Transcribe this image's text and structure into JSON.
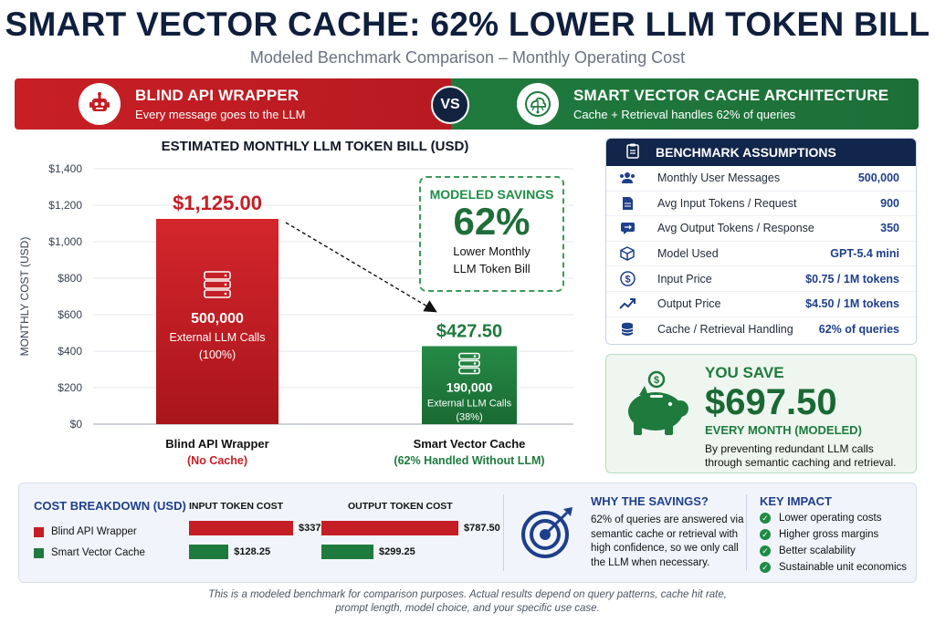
{
  "header": {
    "title": "SMART VECTOR CACHE: 62% LOWER LLM TOKEN BILL",
    "subtitle": "Modeled Benchmark Comparison – Monthly Operating Cost"
  },
  "banner": {
    "left_title": "BLIND API WRAPPER",
    "left_sub": "Every message goes to the LLM",
    "vs": "VS",
    "right_title": "SMART VECTOR CACHE ARCHITECTURE",
    "right_sub": "Cache + Retrieval handles 62% of queries"
  },
  "chart_data": {
    "type": "bar",
    "title": "ESTIMATED MONTHLY LLM TOKEN BILL (USD)",
    "ylabel": "MONTHLY COST (USD)",
    "xlabel": "",
    "ylim": [
      0,
      1400
    ],
    "yticks": [
      "$0",
      "$200",
      "$400",
      "$600",
      "$800",
      "$1,000",
      "$1,200",
      "$1,400"
    ],
    "grid": true,
    "categories": [
      "Blind API Wrapper",
      "Smart Vector Cache"
    ],
    "category_subs": [
      "(No Cache)",
      "(62% Handled Without LLM)"
    ],
    "values": [
      1125.0,
      427.5
    ],
    "value_labels": [
      "$1,125.00",
      "$427.50"
    ],
    "bar_calls": [
      "500,000",
      "190,000"
    ],
    "bar_calls_label": [
      "External LLM Calls",
      "External LLM Calls"
    ],
    "bar_calls_pct": [
      "(100%)",
      "(38%)"
    ],
    "colors": [
      "#c41e24",
      "#1f7a3d"
    ]
  },
  "savings": {
    "label": "MODELED SAVINGS",
    "pct": "62%",
    "desc1": "Lower Monthly",
    "desc2": "LLM Token Bill"
  },
  "assumptions": {
    "title": "BENCHMARK ASSUMPTIONS",
    "rows": [
      {
        "label": "Monthly User Messages",
        "value": "500,000",
        "icon": "users-icon"
      },
      {
        "label": "Avg Input Tokens / Request",
        "value": "900",
        "icon": "document-icon"
      },
      {
        "label": "Avg Output Tokens / Response",
        "value": "350",
        "icon": "chat-icon"
      },
      {
        "label": "Model Used",
        "value": "GPT-5.4 mini",
        "icon": "cube-icon"
      },
      {
        "label": "Input Price",
        "value": "$0.75 / 1M tokens",
        "icon": "dollar-icon"
      },
      {
        "label": "Output Price",
        "value": "$4.50 / 1M tokens",
        "icon": "trend-icon"
      },
      {
        "label": "Cache / Retrieval Handling",
        "value": "62% of queries",
        "icon": "database-icon"
      }
    ]
  },
  "yousave": {
    "label": "YOU SAVE",
    "amount": "$697.50",
    "period": "EVERY MONTH (MODELED)",
    "desc1": "By preventing redundant LLM calls",
    "desc2": "through semantic caching and retrieval."
  },
  "breakdown": {
    "title": "COST BREAKDOWN (USD)",
    "legend": [
      "Blind API Wrapper",
      "Smart Vector Cache"
    ],
    "input_head": "INPUT TOKEN COST",
    "output_head": "OUTPUT TOKEN COST",
    "input_values": [
      337.5,
      128.25
    ],
    "input_labels": [
      "$337.50",
      "$128.25"
    ],
    "output_values": [
      787.5,
      299.25
    ],
    "output_labels": [
      "$787.50",
      "$299.25"
    ]
  },
  "why": {
    "title": "WHY THE SAVINGS?",
    "text": "62% of queries are answered via semantic cache or retrieval with high confidence, so we only call the LLM when necessary."
  },
  "impact": {
    "title": "KEY IMPACT",
    "items": [
      "Lower operating costs",
      "Higher gross margins",
      "Better scalability",
      "Sustainable unit economics"
    ]
  },
  "footer": {
    "line1": "This is a modeled benchmark for comparison purposes. Actual results depend on query patterns, cache hit rate,",
    "line2": "prompt length, model choice, and your specific use case."
  },
  "colors": {
    "red": "#c41e24",
    "green": "#1f7a3d",
    "navy": "#12254a",
    "blue": "#1e3f8a"
  }
}
